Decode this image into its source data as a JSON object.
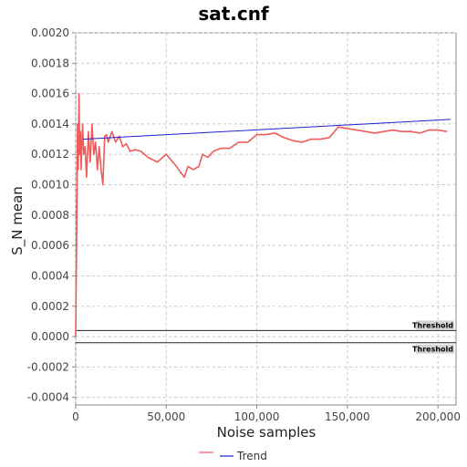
{
  "chart_data": {
    "type": "line",
    "title": "sat.cnf",
    "xlabel": "Noise samples",
    "ylabel": "S_N mean",
    "xlim": [
      0,
      210000
    ],
    "ylim": [
      -0.00045,
      0.002
    ],
    "x_ticks": [
      0,
      50000,
      100000,
      150000,
      200000
    ],
    "x_tick_labels": [
      "0",
      "50,000",
      "100,000",
      "150,000",
      "200,000"
    ],
    "y_ticks": [
      -0.0004,
      -0.0002,
      0.0,
      0.0002,
      0.0004,
      0.0006,
      0.0008,
      0.001,
      0.0012,
      0.0014,
      0.0016,
      0.0018,
      0.002
    ],
    "y_tick_labels": [
      "-0.0004",
      "-0.0002",
      "0.0000",
      "0.0002",
      "0.0004",
      "0.0006",
      "0.0008",
      "0.0010",
      "0.0012",
      "0.0014",
      "0.0016",
      "0.0018",
      "0.0020"
    ],
    "grid": true,
    "legend_placement": "bottom",
    "series": [
      {
        "color": "#f05a5a",
        "x": [
          0,
          300,
          700,
          1000,
          1400,
          1800,
          2200,
          2600,
          3000,
          3400,
          3800,
          4500,
          5200,
          6000,
          7000,
          8000,
          9000,
          10000,
          11000,
          12000,
          13000,
          14000,
          15000,
          16000,
          17000,
          18000,
          20000,
          22000,
          24000,
          26000,
          28000,
          30000,
          33000,
          36000,
          40000,
          45000,
          50000,
          55000,
          58000,
          60000,
          62000,
          65000,
          68000,
          70000,
          73000,
          76000,
          80000,
          85000,
          90000,
          95000,
          100000,
          105000,
          110000,
          115000,
          120000,
          125000,
          130000,
          135000,
          140000,
          145000,
          150000,
          155000,
          160000,
          165000,
          170000,
          175000,
          180000,
          185000,
          190000,
          195000,
          200000,
          205000
        ],
        "y": [
          0.0,
          0.0004,
          0.0009,
          0.0014,
          0.0011,
          0.0016,
          0.0012,
          0.00135,
          0.0011,
          0.00125,
          0.0014,
          0.0012,
          0.00125,
          0.00105,
          0.00135,
          0.00115,
          0.0014,
          0.0012,
          0.00128,
          0.0011,
          0.00125,
          0.0011,
          0.001,
          0.00132,
          0.00133,
          0.00128,
          0.00135,
          0.00128,
          0.00132,
          0.00125,
          0.00127,
          0.00122,
          0.00123,
          0.00122,
          0.00118,
          0.00115,
          0.0012,
          0.00113,
          0.00108,
          0.00105,
          0.00112,
          0.0011,
          0.00112,
          0.0012,
          0.00118,
          0.00122,
          0.00124,
          0.00124,
          0.00128,
          0.00128,
          0.00133,
          0.00133,
          0.00134,
          0.00131,
          0.00129,
          0.00128,
          0.0013,
          0.0013,
          0.00131,
          0.00138,
          0.00137,
          0.00136,
          0.00135,
          0.00134,
          0.00135,
          0.00136,
          0.00135,
          0.00135,
          0.00134,
          0.00136,
          0.00136,
          0.00135
        ]
      },
      {
        "name": "Trend",
        "color": "#1f1fd8",
        "x": [
          4000,
          207000
        ],
        "y": [
          0.0013,
          0.00143
        ]
      }
    ],
    "threshold_lines": [
      {
        "label": "Threshold",
        "y": 4e-05
      },
      {
        "label": "Threshold",
        "y": -4e-05
      }
    ]
  }
}
